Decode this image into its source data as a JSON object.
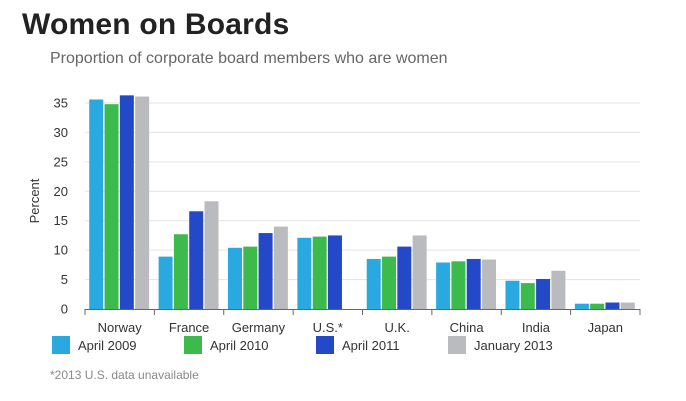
{
  "header": {
    "title": "Women on Boards",
    "subtitle": "Proportion of corporate board members who are women"
  },
  "footnote": "*2013 U.S. data unavailable",
  "chart_data": {
    "type": "bar",
    "title": "Women on Boards",
    "subtitle": "Proportion of corporate board members who are women",
    "xlabel": "",
    "ylabel": "Percent",
    "ylim": [
      0,
      35
    ],
    "yticks": [
      0,
      5,
      10,
      15,
      20,
      25,
      30,
      35
    ],
    "grid": true,
    "legend_position": "bottom",
    "categories": [
      "Norway",
      "France",
      "Germany",
      "U.S.*",
      "U.K.",
      "China",
      "India",
      "Japan"
    ],
    "series": [
      {
        "name": "April 2009",
        "color": "#2aa9e0",
        "values": [
          35.6,
          8.9,
          10.4,
          12.1,
          8.5,
          7.9,
          4.8,
          0.9
        ]
      },
      {
        "name": "April 2010",
        "color": "#3cba4b",
        "values": [
          34.8,
          12.7,
          10.6,
          12.3,
          8.9,
          8.1,
          4.4,
          0.9
        ]
      },
      {
        "name": "April 2011",
        "color": "#2449c8",
        "values": [
          36.3,
          16.6,
          12.9,
          12.5,
          10.6,
          8.5,
          5.1,
          1.1
        ]
      },
      {
        "name": "January 2013",
        "color": "#b9bbbe",
        "values": [
          36.1,
          18.3,
          14.0,
          null,
          12.5,
          8.4,
          6.5,
          1.1
        ]
      }
    ]
  }
}
